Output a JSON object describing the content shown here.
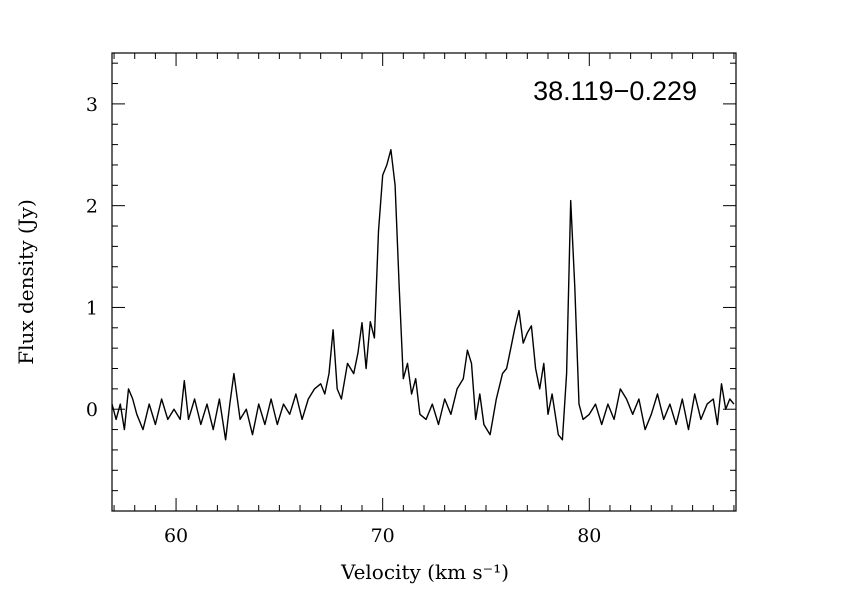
{
  "chart_data": {
    "type": "line",
    "title": "",
    "annotation": "38.119−0.229",
    "xlabel": "Velocity (km s⁻¹)",
    "ylabel": "Flux density (Jy)",
    "xlim": [
      56.9,
      87.1
    ],
    "ylim": [
      -1.0,
      3.5
    ],
    "x_ticks": [
      60,
      70,
      80
    ],
    "x_tick_labels": [
      "60",
      "70",
      "80"
    ],
    "y_ticks": [
      0,
      1,
      2,
      3
    ],
    "y_tick_labels": [
      "0",
      "1",
      "2",
      "3"
    ],
    "x_minor_step": 1,
    "y_minor_step": 0.2,
    "grid": false,
    "line_color": "#000000",
    "series": [
      {
        "x": [
          56.9,
          57.1,
          57.3,
          57.5,
          57.7,
          57.9,
          58.1,
          58.4,
          58.7,
          59.0,
          59.3,
          59.6,
          59.9,
          60.2,
          60.4,
          60.6,
          60.9,
          61.2,
          61.5,
          61.8,
          62.1,
          62.4,
          62.6,
          62.8,
          63.1,
          63.4,
          63.7,
          64.0,
          64.3,
          64.6,
          64.9,
          65.2,
          65.5,
          65.8,
          66.1,
          66.4,
          66.7,
          67.0,
          67.2,
          67.4,
          67.6,
          67.8,
          68.0,
          68.3,
          68.6,
          68.8,
          69.0,
          69.2,
          69.4,
          69.6,
          69.8,
          70.0,
          70.2,
          70.4,
          70.6,
          70.8,
          71.0,
          71.2,
          71.4,
          71.6,
          71.8,
          72.1,
          72.4,
          72.7,
          73.0,
          73.3,
          73.6,
          73.9,
          74.1,
          74.3,
          74.5,
          74.7,
          74.9,
          75.2,
          75.5,
          75.8,
          76.0,
          76.2,
          76.4,
          76.6,
          76.8,
          77.0,
          77.2,
          77.4,
          77.6,
          77.8,
          78.0,
          78.2,
          78.5,
          78.7,
          78.9,
          79.1,
          79.3,
          79.5,
          79.7,
          80.0,
          80.3,
          80.6,
          80.9,
          81.2,
          81.5,
          81.8,
          82.1,
          82.4,
          82.7,
          83.0,
          83.3,
          83.6,
          83.9,
          84.2,
          84.5,
          84.8,
          85.1,
          85.4,
          85.7,
          86.0,
          86.2,
          86.4,
          86.6,
          86.8,
          87.0
        ],
        "y": [
          0.05,
          -0.1,
          0.05,
          -0.2,
          0.2,
          0.1,
          -0.05,
          -0.2,
          0.05,
          -0.15,
          0.1,
          -0.1,
          0.0,
          -0.1,
          0.28,
          -0.1,
          0.1,
          -0.15,
          0.05,
          -0.2,
          0.1,
          -0.3,
          0.05,
          0.35,
          -0.1,
          0.0,
          -0.25,
          0.05,
          -0.15,
          0.1,
          -0.15,
          0.05,
          -0.05,
          0.15,
          -0.1,
          0.1,
          0.2,
          0.25,
          0.15,
          0.35,
          0.78,
          0.2,
          0.1,
          0.45,
          0.35,
          0.55,
          0.85,
          0.4,
          0.86,
          0.7,
          1.75,
          2.3,
          2.4,
          2.55,
          2.2,
          1.2,
          0.3,
          0.45,
          0.15,
          0.3,
          -0.05,
          -0.1,
          0.05,
          -0.15,
          0.1,
          -0.05,
          0.2,
          0.3,
          0.58,
          0.45,
          -0.1,
          0.15,
          -0.15,
          -0.25,
          0.1,
          0.35,
          0.4,
          0.6,
          0.8,
          0.97,
          0.65,
          0.75,
          0.82,
          0.4,
          0.2,
          0.45,
          -0.05,
          0.15,
          -0.25,
          -0.3,
          0.35,
          2.05,
          1.2,
          0.05,
          -0.1,
          -0.05,
          0.05,
          -0.15,
          0.05,
          -0.1,
          0.2,
          0.1,
          -0.05,
          0.1,
          -0.2,
          -0.05,
          0.15,
          -0.1,
          0.05,
          -0.15,
          0.1,
          -0.2,
          0.15,
          -0.1,
          0.05,
          0.1,
          -0.15,
          0.25,
          0.0,
          0.1,
          0.05
        ]
      }
    ]
  }
}
